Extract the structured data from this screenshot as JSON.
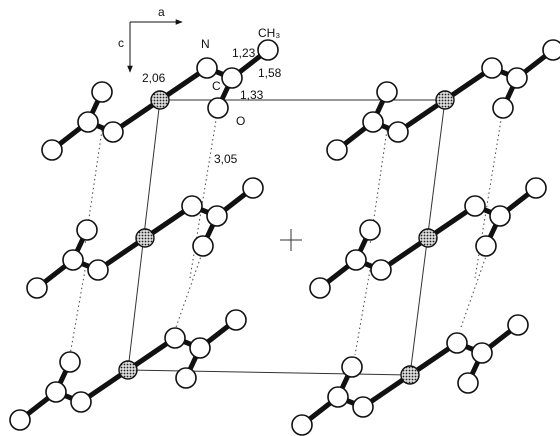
{
  "labels": [
    "a",
    "c",
    "N",
    "1,23",
    "CH₃",
    "2,06",
    "1,58",
    "C",
    "1,33",
    "O",
    "3,05"
  ]
}
